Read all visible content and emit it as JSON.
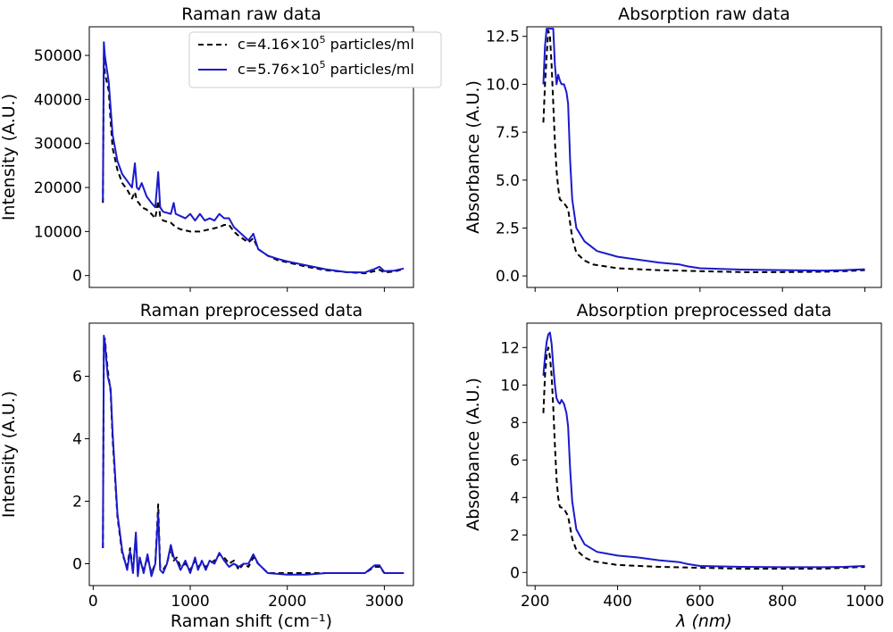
{
  "colors": {
    "series_low": "#000000",
    "series_high": "#1a1acc"
  },
  "legend": {
    "low": {
      "prefix": "c=4.16×10",
      "exp": "5",
      "suffix": " particles/ml"
    },
    "high": {
      "prefix": "c=5.76×10",
      "exp": "5",
      "suffix": " particles/ml"
    }
  },
  "chart_data": [
    {
      "type": "line",
      "title": "Raman raw data",
      "xlabel": "",
      "ylabel": "Intensity (A.U.)",
      "xlim": [
        -40,
        3300
      ],
      "ylim": [
        -2700,
        56500
      ],
      "xticks": [
        1000,
        2000,
        3000
      ],
      "xtick_labels": [],
      "yticks": [
        0,
        10000,
        20000,
        30000,
        40000,
        50000
      ],
      "ytick_labels": [
        "0",
        "10000",
        "20000",
        "30000",
        "40000",
        "50000"
      ],
      "legend_position": "top-right",
      "series": [
        {
          "name": "c=4.16×10⁵ particles/ml",
          "style": "dashed",
          "x": [
            100,
            110,
            120,
            140,
            160,
            180,
            200,
            250,
            300,
            350,
            400,
            430,
            450,
            470,
            500,
            550,
            600,
            640,
            670,
            690,
            720,
            800,
            850,
            900,
            1000,
            1100,
            1200,
            1300,
            1350,
            1400,
            1450,
            1500,
            1600,
            1650,
            1700,
            1800,
            1900,
            2000,
            2200,
            2400,
            2600,
            2800,
            2900,
            2950,
            3000,
            3100,
            3200
          ],
          "y": [
            16500,
            50000,
            46000,
            44000,
            42000,
            35000,
            29000,
            24000,
            21000,
            19500,
            17500,
            19000,
            17000,
            16500,
            15500,
            15000,
            14000,
            13000,
            17000,
            13500,
            12500,
            12000,
            11000,
            10500,
            10000,
            10000,
            10500,
            11000,
            11500,
            11500,
            10000,
            9000,
            7500,
            8500,
            6000,
            4500,
            3500,
            3000,
            2000,
            1200,
            800,
            500,
            1000,
            1300,
            700,
            900,
            1500
          ]
        },
        {
          "name": "c=5.76×10⁵ particles/ml",
          "style": "solid",
          "x": [
            100,
            110,
            120,
            140,
            160,
            180,
            200,
            250,
            300,
            350,
            400,
            430,
            450,
            470,
            500,
            550,
            600,
            640,
            670,
            690,
            720,
            800,
            830,
            850,
            900,
            950,
            1000,
            1050,
            1100,
            1150,
            1200,
            1250,
            1300,
            1350,
            1400,
            1450,
            1500,
            1600,
            1650,
            1700,
            1800,
            1900,
            2000,
            2200,
            2400,
            2600,
            2800,
            2900,
            2950,
            3000,
            3100,
            3200
          ],
          "y": [
            17000,
            53000,
            50000,
            47000,
            44000,
            38000,
            32000,
            26000,
            23000,
            21500,
            20000,
            25500,
            20000,
            19500,
            21000,
            18000,
            16500,
            15500,
            23500,
            15500,
            14500,
            14000,
            16500,
            14000,
            13500,
            13000,
            14000,
            12500,
            14000,
            12500,
            13000,
            12500,
            14000,
            13000,
            13000,
            11000,
            10000,
            8000,
            9500,
            6000,
            4500,
            3800,
            3200,
            2300,
            1400,
            800,
            700,
            1500,
            2000,
            1000,
            1100,
            1600
          ]
        }
      ]
    },
    {
      "type": "line",
      "title": "Absorption raw data",
      "xlabel": "",
      "ylabel": "Absorbance (A.U.)",
      "xlim": [
        180,
        1040
      ],
      "ylim": [
        -0.6,
        13.0
      ],
      "xticks": [
        200,
        400,
        600,
        800,
        1000
      ],
      "xtick_labels": [],
      "yticks": [
        0.0,
        2.5,
        5.0,
        7.5,
        10.0,
        12.5
      ],
      "ytick_labels": [
        "0.0",
        "2.5",
        "5.0",
        "7.5",
        "10.0",
        "12.5"
      ],
      "series": [
        {
          "name": "c=4.16×10⁵ particles/ml",
          "style": "dashed",
          "x": [
            220,
            224,
            228,
            232,
            236,
            240,
            244,
            248,
            252,
            256,
            260,
            270,
            280,
            290,
            300,
            320,
            340,
            400,
            500,
            600,
            700,
            800,
            900,
            950,
            1000
          ],
          "y": [
            8.0,
            10.0,
            11.5,
            12.8,
            12.5,
            11.0,
            9.0,
            7.0,
            5.5,
            4.6,
            4.0,
            3.8,
            3.5,
            2.0,
            1.2,
            0.8,
            0.6,
            0.4,
            0.3,
            0.25,
            0.2,
            0.2,
            0.22,
            0.25,
            0.3
          ]
        },
        {
          "name": "c=5.76×10⁵ particles/ml",
          "style": "solid",
          "x": [
            220,
            224,
            228,
            232,
            236,
            240,
            244,
            248,
            252,
            256,
            260,
            264,
            270,
            276,
            280,
            285,
            290,
            300,
            320,
            350,
            400,
            450,
            500,
            550,
            560,
            570,
            600,
            700,
            800,
            900,
            950,
            1000
          ],
          "y": [
            10.0,
            12.0,
            12.9,
            12.9,
            12.9,
            12.9,
            12.9,
            11.0,
            10.0,
            10.5,
            10.2,
            10.0,
            10.0,
            9.6,
            9.0,
            6.0,
            4.0,
            2.5,
            1.8,
            1.3,
            1.0,
            0.85,
            0.7,
            0.6,
            0.55,
            0.5,
            0.4,
            0.33,
            0.3,
            0.28,
            0.3,
            0.35
          ]
        }
      ]
    },
    {
      "type": "line",
      "title": "Raman preprocessed data",
      "xlabel": "Raman shift (cm⁻¹)",
      "ylabel": "Intensity (A.U.)",
      "xlim": [
        -40,
        3300
      ],
      "ylim": [
        -0.7,
        7.7
      ],
      "xticks": [
        0,
        1000,
        2000,
        3000
      ],
      "xtick_labels": [
        "0",
        "1000",
        "2000",
        "3000"
      ],
      "yticks": [
        0,
        2,
        4,
        6
      ],
      "ytick_labels": [
        "0",
        "2",
        "4",
        "6"
      ],
      "series": [
        {
          "name": "c=4.16×10⁵ particles/ml",
          "style": "dashed",
          "x": [
            100,
            110,
            120,
            150,
            180,
            200,
            250,
            300,
            350,
            380,
            410,
            440,
            460,
            480,
            520,
            560,
            600,
            640,
            670,
            690,
            720,
            760,
            800,
            830,
            860,
            900,
            950,
            1000,
            1050,
            1080,
            1120,
            1160,
            1200,
            1250,
            1300,
            1350,
            1400,
            1450,
            1500,
            1550,
            1600,
            1650,
            1700,
            1800,
            2000,
            2200,
            2400,
            2600,
            2800,
            2900,
            2950,
            3000,
            3100,
            3200
          ],
          "y": [
            0.5,
            7.0,
            7.2,
            6.2,
            5.5,
            4.0,
            1.5,
            0.3,
            -0.1,
            0.5,
            -0.2,
            0.9,
            -0.3,
            0.1,
            -0.2,
            0.2,
            -0.3,
            0.0,
            1.9,
            -0.1,
            -0.2,
            0.0,
            0.5,
            0.1,
            0.2,
            -0.1,
            0.0,
            -0.2,
            0.1,
            -0.1,
            0.0,
            -0.1,
            0.0,
            0.1,
            0.3,
            0.2,
            0.0,
            0.1,
            -0.2,
            0.0,
            -0.1,
            0.2,
            0.0,
            -0.3,
            -0.3,
            -0.3,
            -0.3,
            -0.3,
            -0.3,
            -0.1,
            -0.1,
            -0.3,
            -0.3,
            -0.3
          ]
        },
        {
          "name": "c=5.76×10⁵ particles/ml",
          "style": "solid",
          "x": [
            100,
            110,
            120,
            150,
            180,
            200,
            250,
            300,
            350,
            380,
            410,
            440,
            460,
            480,
            520,
            560,
            600,
            640,
            670,
            690,
            720,
            760,
            800,
            830,
            860,
            900,
            950,
            1000,
            1050,
            1080,
            1120,
            1160,
            1200,
            1250,
            1300,
            1350,
            1400,
            1450,
            1500,
            1550,
            1600,
            1650,
            1700,
            1800,
            2000,
            2200,
            2400,
            2600,
            2800,
            2900,
            2950,
            3000,
            3100,
            3200
          ],
          "y": [
            0.5,
            7.3,
            7.1,
            6.0,
            5.6,
            4.2,
            1.6,
            0.4,
            -0.2,
            0.4,
            -0.3,
            1.0,
            -0.4,
            0.2,
            -0.3,
            0.3,
            -0.4,
            0.0,
            1.6,
            -0.2,
            -0.3,
            0.0,
            0.6,
            0.2,
            0.1,
            -0.2,
            0.1,
            -0.3,
            0.2,
            -0.2,
            0.1,
            -0.2,
            0.1,
            0.0,
            0.35,
            0.1,
            -0.1,
            0.0,
            -0.1,
            0.0,
            0.0,
            0.3,
            0.0,
            -0.3,
            -0.35,
            -0.35,
            -0.3,
            -0.3,
            -0.3,
            -0.05,
            -0.05,
            -0.3,
            -0.3,
            -0.3
          ]
        }
      ]
    },
    {
      "type": "line",
      "title": "Absorption preprocessed data",
      "xlabel": "λ (nm)",
      "ylabel": "Absorbance (A.U.)",
      "xlim": [
        180,
        1040
      ],
      "ylim": [
        -0.7,
        13.3
      ],
      "xticks": [
        200,
        400,
        600,
        800,
        1000
      ],
      "xtick_labels": [
        "200",
        "400",
        "600",
        "800",
        "1000"
      ],
      "yticks": [
        0,
        2,
        4,
        6,
        8,
        10,
        12
      ],
      "ytick_labels": [
        "0",
        "2",
        "4",
        "6",
        "8",
        "10",
        "12"
      ],
      "series": [
        {
          "name": "c=4.16×10⁵ particles/ml",
          "style": "dashed",
          "x": [
            220,
            224,
            228,
            232,
            236,
            240,
            244,
            248,
            252,
            256,
            260,
            270,
            280,
            290,
            300,
            320,
            340,
            400,
            500,
            600,
            700,
            800,
            900,
            950,
            1000
          ],
          "y": [
            8.5,
            10.5,
            11.6,
            12.0,
            11.5,
            10.5,
            8.8,
            6.8,
            5.0,
            4.0,
            3.5,
            3.4,
            3.0,
            1.8,
            1.2,
            0.8,
            0.6,
            0.4,
            0.3,
            0.25,
            0.2,
            0.2,
            0.2,
            0.25,
            0.3
          ]
        },
        {
          "name": "c=5.76×10⁵ particles/ml",
          "style": "solid",
          "x": [
            220,
            224,
            228,
            232,
            236,
            240,
            244,
            248,
            252,
            256,
            260,
            264,
            270,
            276,
            280,
            285,
            290,
            300,
            320,
            350,
            400,
            450,
            500,
            550,
            560,
            570,
            600,
            700,
            800,
            900,
            950,
            1000
          ],
          "y": [
            10.5,
            11.5,
            12.3,
            12.7,
            12.8,
            12.2,
            11.0,
            10.0,
            9.3,
            9.1,
            9.0,
            9.2,
            9.0,
            8.5,
            7.8,
            5.5,
            3.8,
            2.3,
            1.5,
            1.1,
            0.9,
            0.8,
            0.65,
            0.55,
            0.5,
            0.45,
            0.35,
            0.3,
            0.28,
            0.28,
            0.3,
            0.35
          ]
        }
      ]
    }
  ]
}
